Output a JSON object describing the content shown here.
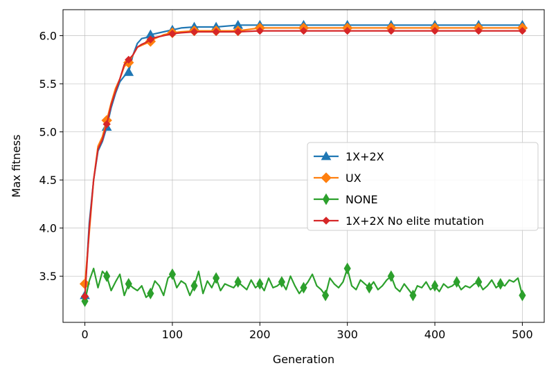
{
  "chart_data": {
    "type": "line",
    "xlabel": "Generation",
    "ylabel": "Max fitness",
    "xlim": [
      -25,
      525
    ],
    "ylim": [
      3.02,
      6.27
    ],
    "xticks": [
      0,
      100,
      200,
      300,
      400,
      500
    ],
    "yticks": [
      3.5,
      4.0,
      4.5,
      5.0,
      5.5,
      6.0
    ],
    "ytick_labels": [
      "3.5",
      "4.0",
      "4.5",
      "5.0",
      "5.5",
      "6.0"
    ],
    "grid": true,
    "legend_position": "center-right",
    "series": [
      {
        "name": "1X+2X",
        "color": "#1f77b4",
        "marker": "triangle",
        "x": [
          0,
          5,
          10,
          15,
          20,
          25,
          30,
          35,
          40,
          45,
          50,
          55,
          60,
          65,
          70,
          75,
          80,
          90,
          100,
          110,
          125,
          150,
          175,
          200,
          250,
          300,
          350,
          400,
          450,
          500
        ],
        "y": [
          3.3,
          4.05,
          4.5,
          4.8,
          4.9,
          5.05,
          5.25,
          5.4,
          5.52,
          5.58,
          5.62,
          5.8,
          5.92,
          5.97,
          5.98,
          6.01,
          6.02,
          6.04,
          6.06,
          6.08,
          6.09,
          6.09,
          6.11,
          6.11,
          6.11,
          6.11,
          6.11,
          6.11,
          6.11,
          6.11
        ]
      },
      {
        "name": "UX",
        "color": "#ff7f0e",
        "marker": "diamond",
        "x": [
          0,
          5,
          10,
          15,
          20,
          25,
          30,
          35,
          40,
          45,
          50,
          55,
          60,
          65,
          70,
          75,
          80,
          90,
          100,
          110,
          125,
          150,
          175,
          200,
          250,
          300,
          350,
          400,
          450,
          500
        ],
        "y": [
          3.42,
          3.95,
          4.5,
          4.85,
          4.95,
          5.12,
          5.3,
          5.45,
          5.55,
          5.68,
          5.72,
          5.8,
          5.88,
          5.9,
          5.92,
          5.94,
          5.97,
          6.01,
          6.03,
          6.04,
          6.05,
          6.05,
          6.05,
          6.08,
          6.08,
          6.08,
          6.08,
          6.08,
          6.08,
          6.08
        ]
      },
      {
        "name": "NONE",
        "color": "#2ca02c",
        "marker": "thin-diamond",
        "x": [
          0,
          5,
          10,
          15,
          20,
          25,
          30,
          35,
          40,
          45,
          50,
          55,
          60,
          65,
          70,
          75,
          80,
          85,
          90,
          95,
          100,
          105,
          110,
          115,
          120,
          125,
          130,
          135,
          140,
          145,
          150,
          155,
          160,
          165,
          170,
          175,
          180,
          185,
          190,
          195,
          200,
          205,
          210,
          215,
          220,
          225,
          230,
          235,
          240,
          245,
          250,
          255,
          260,
          265,
          270,
          275,
          280,
          285,
          290,
          295,
          300,
          305,
          310,
          315,
          320,
          325,
          330,
          335,
          340,
          345,
          350,
          355,
          360,
          365,
          370,
          375,
          380,
          385,
          390,
          395,
          400,
          405,
          410,
          415,
          420,
          425,
          430,
          435,
          440,
          445,
          450,
          455,
          460,
          465,
          470,
          475,
          480,
          485,
          490,
          495,
          500
        ],
        "y": [
          3.24,
          3.45,
          3.58,
          3.38,
          3.55,
          3.5,
          3.35,
          3.44,
          3.52,
          3.3,
          3.42,
          3.38,
          3.35,
          3.4,
          3.28,
          3.32,
          3.45,
          3.4,
          3.3,
          3.48,
          3.52,
          3.38,
          3.45,
          3.42,
          3.3,
          3.4,
          3.55,
          3.32,
          3.45,
          3.38,
          3.48,
          3.35,
          3.42,
          3.4,
          3.38,
          3.44,
          3.4,
          3.36,
          3.46,
          3.38,
          3.42,
          3.35,
          3.48,
          3.38,
          3.4,
          3.44,
          3.36,
          3.5,
          3.4,
          3.32,
          3.38,
          3.44,
          3.52,
          3.4,
          3.36,
          3.3,
          3.48,
          3.42,
          3.38,
          3.44,
          3.58,
          3.4,
          3.36,
          3.46,
          3.42,
          3.38,
          3.44,
          3.36,
          3.4,
          3.46,
          3.5,
          3.38,
          3.34,
          3.42,
          3.36,
          3.3,
          3.4,
          3.38,
          3.44,
          3.36,
          3.4,
          3.34,
          3.42,
          3.38,
          3.4,
          3.44,
          3.36,
          3.4,
          3.38,
          3.42,
          3.44,
          3.36,
          3.4,
          3.46,
          3.38,
          3.42,
          3.4,
          3.46,
          3.44,
          3.48,
          3.3
        ]
      },
      {
        "name": "1X+2X No elite mutation",
        "color": "#d62728",
        "marker": "small-diamond",
        "x": [
          0,
          5,
          10,
          15,
          20,
          25,
          30,
          35,
          40,
          45,
          50,
          55,
          60,
          65,
          70,
          75,
          80,
          90,
          100,
          110,
          125,
          150,
          175,
          200,
          250,
          300,
          350,
          400,
          450,
          500
        ],
        "y": [
          3.29,
          4.0,
          4.5,
          4.82,
          4.92,
          5.08,
          5.28,
          5.42,
          5.55,
          5.7,
          5.75,
          5.8,
          5.88,
          5.91,
          5.93,
          5.96,
          5.98,
          6.0,
          6.02,
          6.03,
          6.04,
          6.04,
          6.04,
          6.05,
          6.05,
          6.05,
          6.05,
          6.05,
          6.05,
          6.05
        ]
      }
    ]
  }
}
